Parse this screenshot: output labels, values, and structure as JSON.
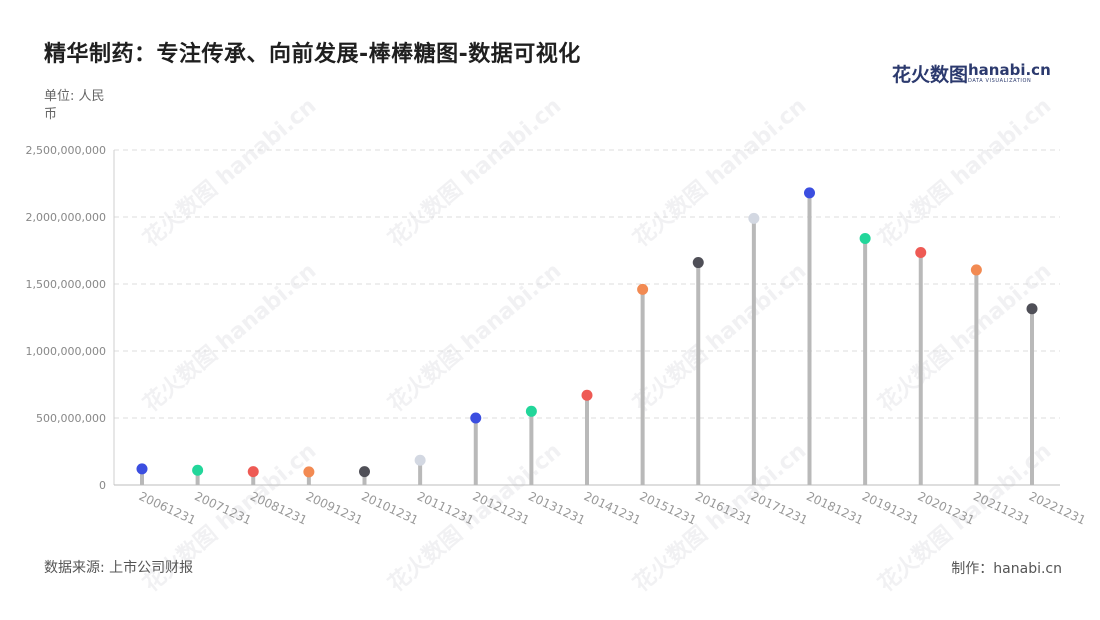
{
  "title": "精华制药：专注传承、向前发展-棒棒糖图-数据可视化",
  "unit_label": "单位: 人民币",
  "logo": {
    "cn": "花火数图",
    "en": "hanabi.cn",
    "sub": "DATA VISUALIZATION"
  },
  "watermark": "花火数图 hanabi.cn",
  "footer": {
    "source": "数据来源: 上市公司财报",
    "maker": "制作：hanabi.cn"
  },
  "chart_data": {
    "type": "lollipop",
    "title": "精华制药：专注传承、向前发展-棒棒糖图-数据可视化",
    "ylabel": "单位: 人民币",
    "ylim": [
      0,
      2500000000
    ],
    "yticks": [
      0,
      500000000,
      1000000000,
      1500000000,
      2000000000,
      2500000000
    ],
    "ytick_labels": [
      "0",
      "500,000,000",
      "1,000,000,000",
      "1,500,000,000",
      "2,000,000,000",
      "2,500,000,000"
    ],
    "grid": true,
    "categories": [
      "20061231",
      "20071231",
      "20081231",
      "20091231",
      "20101231",
      "20111231",
      "20121231",
      "20131231",
      "20141231",
      "20151231",
      "20161231",
      "20171231",
      "20181231",
      "20191231",
      "20201231",
      "20211231",
      "20221231"
    ],
    "values": [
      120000000,
      110000000,
      100000000,
      98000000,
      100000000,
      185000000,
      500000000,
      550000000,
      670000000,
      1460000000,
      1660000000,
      1990000000,
      2180000000,
      1840000000,
      1735000000,
      1605000000,
      1315000000
    ],
    "colors": [
      "#3b4ee0",
      "#22d69a",
      "#ee5a54",
      "#f28a52",
      "#4f4f57",
      "#d3d8e2"
    ]
  }
}
